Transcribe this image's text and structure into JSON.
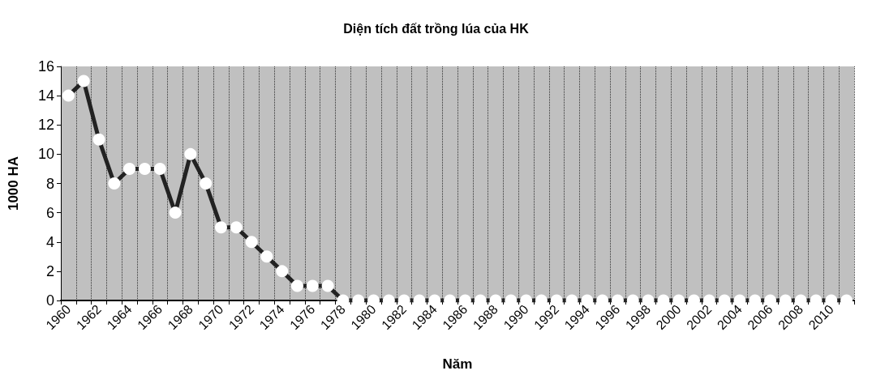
{
  "chart_data": {
    "type": "line",
    "title": "Diện tích đất trồng lúa của HK",
    "xlabel": "Năm",
    "ylabel": "1000 HA",
    "categories": [
      "1960",
      null,
      "1962",
      null,
      "1964",
      null,
      "1966",
      null,
      "1968",
      null,
      "1970",
      null,
      "1972",
      null,
      "1974",
      null,
      "1976",
      null,
      "1978",
      null,
      "1980",
      null,
      "1982",
      null,
      "1984",
      null,
      "1986",
      null,
      "1988",
      null,
      "1990",
      null,
      "1992",
      null,
      "1994",
      null,
      "1996",
      null,
      "1998",
      null,
      "2000",
      null,
      "2002",
      null,
      "2004",
      null,
      "2006",
      null,
      "2008",
      null,
      "2010",
      null
    ],
    "series": [
      {
        "color": "#222222",
        "values": [
          14,
          15,
          11,
          8,
          9,
          9,
          9,
          6,
          10,
          8,
          5,
          5,
          4,
          3,
          2,
          1,
          1,
          1,
          0,
          0,
          0,
          0,
          0,
          0,
          0,
          0,
          0,
          0,
          0,
          0,
          0,
          0,
          0,
          0,
          0,
          0,
          0,
          0,
          0,
          0,
          0,
          0,
          0,
          0,
          0,
          0,
          0,
          0,
          0,
          0,
          0,
          0
        ]
      }
    ],
    "ylim": [
      0,
      16
    ],
    "yticks": [
      0,
      2,
      4,
      6,
      8,
      10,
      12,
      14,
      16
    ],
    "grid": "x",
    "marker": "circle",
    "line_style": "solid"
  }
}
